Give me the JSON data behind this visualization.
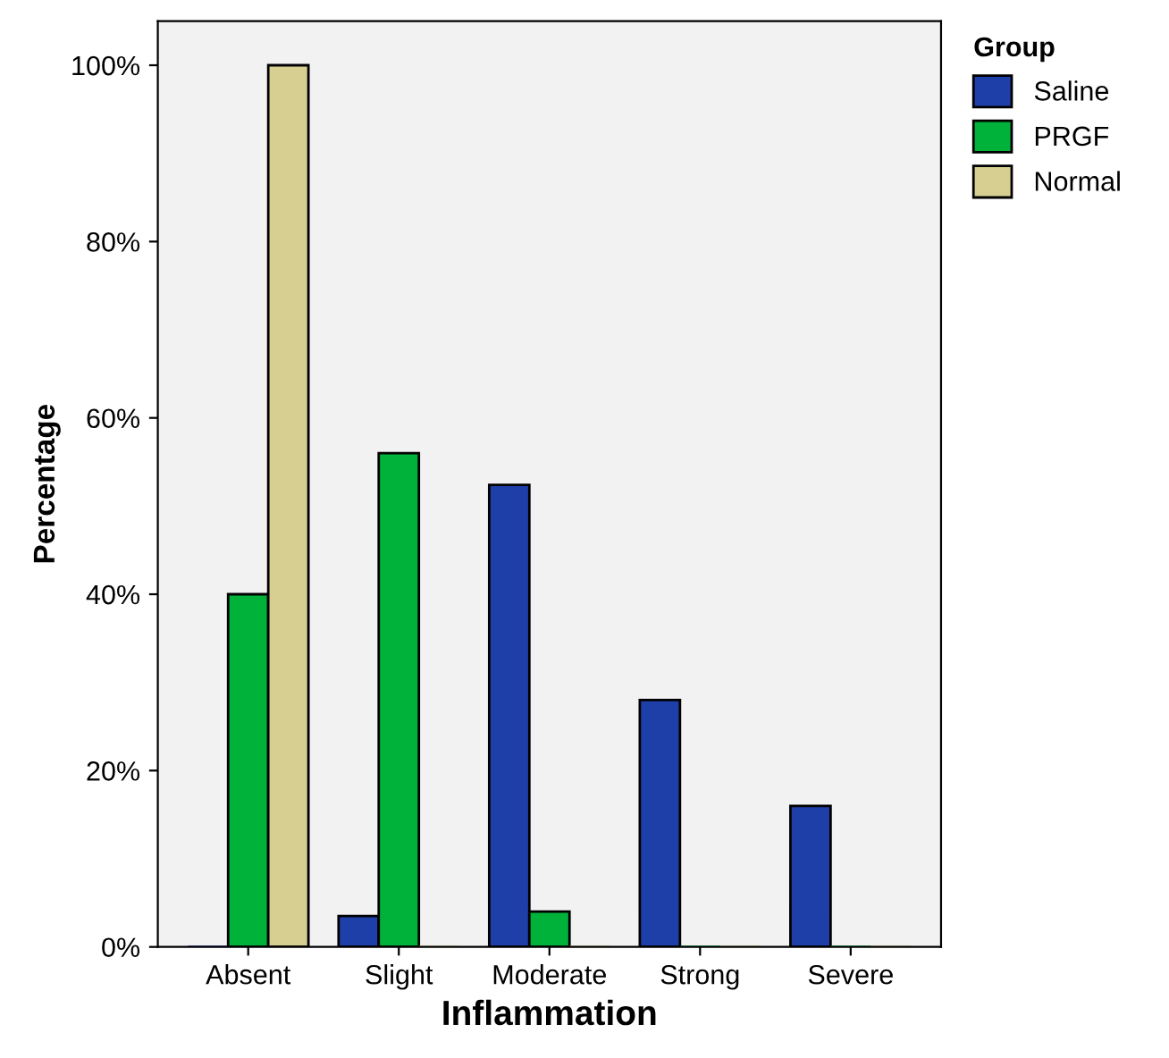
{
  "chart_data": {
    "type": "bar",
    "xlabel": "Inflammation",
    "ylabel": "Percentage",
    "legend_title": "Group",
    "legend": "top right",
    "grid": false,
    "categories": [
      "Absent",
      "Slight",
      "Moderate",
      "Strong",
      "Severe"
    ],
    "series": [
      {
        "name": "Saline",
        "color": "#1f3fa8",
        "values": [
          0,
          3.5,
          52.4,
          28,
          16
        ]
      },
      {
        "name": "PRGF",
        "color": "#00b13a",
        "values": [
          40,
          56,
          4,
          0,
          0
        ]
      },
      {
        "name": "Normal",
        "color": "#d6cf91",
        "values": [
          100,
          0,
          0,
          0,
          0
        ]
      }
    ],
    "ylim": [
      0,
      105
    ],
    "yticks": [
      {
        "value": 0,
        "label": "0%"
      },
      {
        "value": 20,
        "label": "20%"
      },
      {
        "value": 40,
        "label": "40%"
      },
      {
        "value": 60,
        "label": "60%"
      },
      {
        "value": 80,
        "label": "80%"
      },
      {
        "value": 100,
        "label": "100%"
      }
    ]
  }
}
